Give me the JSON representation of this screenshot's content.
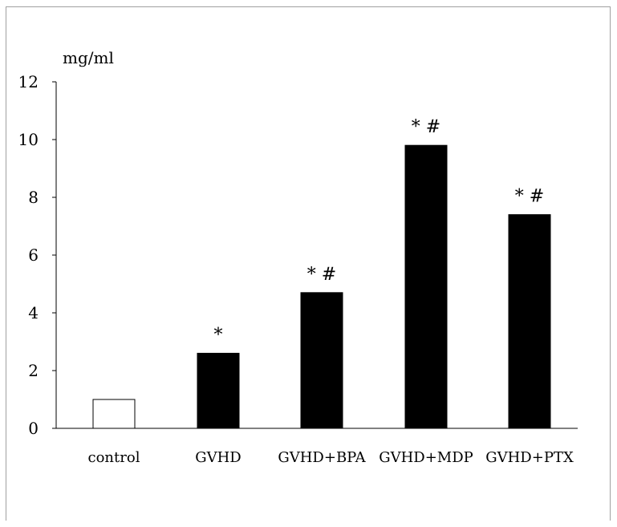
{
  "chart_data": {
    "type": "bar",
    "categories": [
      "control",
      "GVHD",
      "GVHD+BPA",
      "GVHD+MDP",
      "GVHD+PTX"
    ],
    "values": [
      1.0,
      2.6,
      4.7,
      9.8,
      7.4
    ],
    "significance": [
      "",
      "*",
      "* #",
      "* #",
      "* #"
    ],
    "bar_fill": [
      "#ffffff",
      "#000000",
      "#000000",
      "#000000",
      "#000000"
    ],
    "bar_stroke": "#000000",
    "ylabel": "mg/ml",
    "xlabel": "",
    "ylim": [
      0,
      12
    ],
    "yticks": [
      0,
      2,
      4,
      6,
      8,
      10,
      12
    ],
    "grid": false,
    "legend": "none"
  }
}
